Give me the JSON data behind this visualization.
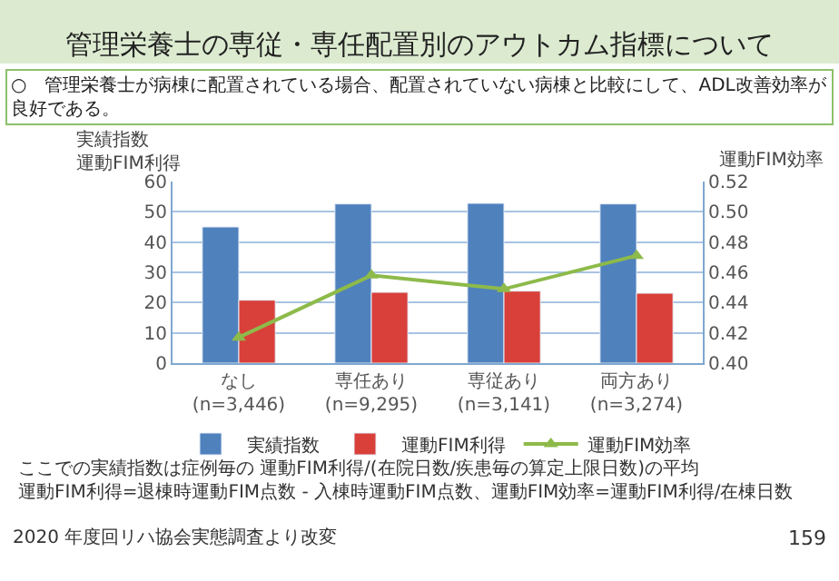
{
  "chart_data": {
    "type": "bar",
    "title": "管理栄養士の専従・専任配置別のアウトカム指標について",
    "subtitle": "○　管理栄養士が病棟に配置されている場合、配置されていない病棟と比較にして、ADL改善効率が良好である。",
    "categories": [
      "なし\n(n=3,446)",
      "専任あり\n(n=9,295)",
      "専従あり\n(n=3,141)",
      "両方あり\n(n=3,274)"
    ],
    "series": [
      {
        "name": "実績指数",
        "color": "#4f81bd",
        "values": [
          45.0,
          52.6,
          52.8,
          52.6
        ]
      },
      {
        "name": "運動FIM利得",
        "color": "#d9403a",
        "values": [
          20.8,
          23.4,
          23.8,
          23.1
        ]
      },
      {
        "name": "運動FIM効率",
        "color": "#8dba4a",
        "type": "line",
        "axis": "y2",
        "marker": "triangle",
        "values": [
          0.417,
          0.458,
          0.449,
          0.471
        ]
      }
    ],
    "ylabel": "実績指数運動FIM利得",
    "y2label": "運動FIM効率",
    "ylim": [
      0,
      60
    ],
    "yticks": [
      0,
      10,
      20,
      30,
      40,
      50,
      60
    ],
    "y2lim": [
      0.4,
      0.52
    ],
    "y2ticks": [
      {
        "value": 0.4,
        "label": "0.40"
      },
      {
        "value": 0.42,
        "label": "0.42"
      },
      {
        "value": 0.44,
        "label": "0.44"
      },
      {
        "value": 0.46,
        "label": "0.46"
      },
      {
        "value": 0.48,
        "label": "0.48"
      },
      {
        "value": 0.5,
        "label": "0.50"
      },
      {
        "value": 0.52,
        "label": "0.52"
      }
    ],
    "grid": "y",
    "legend": "bottom",
    "annotations": [
      "ここでの実績指数は症例毎の 運動FIM利得/(在院日数/疾患毎の算定上限日数)の平均運動FIM利得=退棟時運動FIM点数 - 入棟時運動FIM点数、運動FIM効率=運動FIM利得/在棟日数",
      "2020 年度回リハ協会実態調査より改変",
      "159"
    ]
  }
}
